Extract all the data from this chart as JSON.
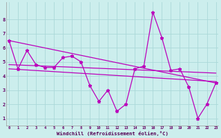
{
  "x": [
    0,
    1,
    2,
    3,
    4,
    5,
    6,
    7,
    8,
    9,
    10,
    11,
    12,
    13,
    14,
    15,
    16,
    17,
    18,
    19,
    20,
    21,
    22,
    23
  ],
  "line1": [
    6.5,
    4.5,
    5.8,
    4.8,
    4.6,
    4.6,
    5.3,
    5.4,
    5.0,
    3.3,
    2.2,
    3.0,
    1.5,
    2.0,
    4.5,
    4.7,
    8.5,
    6.7,
    4.4,
    4.5,
    3.2,
    1.0,
    2.0,
    3.5
  ],
  "trend1_x": [
    0,
    23
  ],
  "trend1_y": [
    6.5,
    3.5
  ],
  "trend2_x": [
    0,
    23
  ],
  "trend2_y": [
    4.8,
    4.2
  ],
  "trend3_x": [
    0,
    23
  ],
  "trend3_y": [
    4.5,
    3.6
  ],
  "bg_color": "#cceeed",
  "grid_color": "#aad8d8",
  "line_color": "#bb00bb",
  "ylabel_vals": [
    1,
    2,
    3,
    4,
    5,
    6,
    7,
    8
  ],
  "xlabel_vals": [
    0,
    1,
    2,
    3,
    4,
    5,
    6,
    7,
    8,
    9,
    10,
    11,
    12,
    13,
    14,
    15,
    16,
    17,
    18,
    19,
    20,
    21,
    22,
    23
  ],
  "xlabel_label": "Windchill (Refroidissement éolien,°C)",
  "ylim": [
    0.5,
    9.2
  ],
  "xlim": [
    -0.3,
    23.3
  ]
}
